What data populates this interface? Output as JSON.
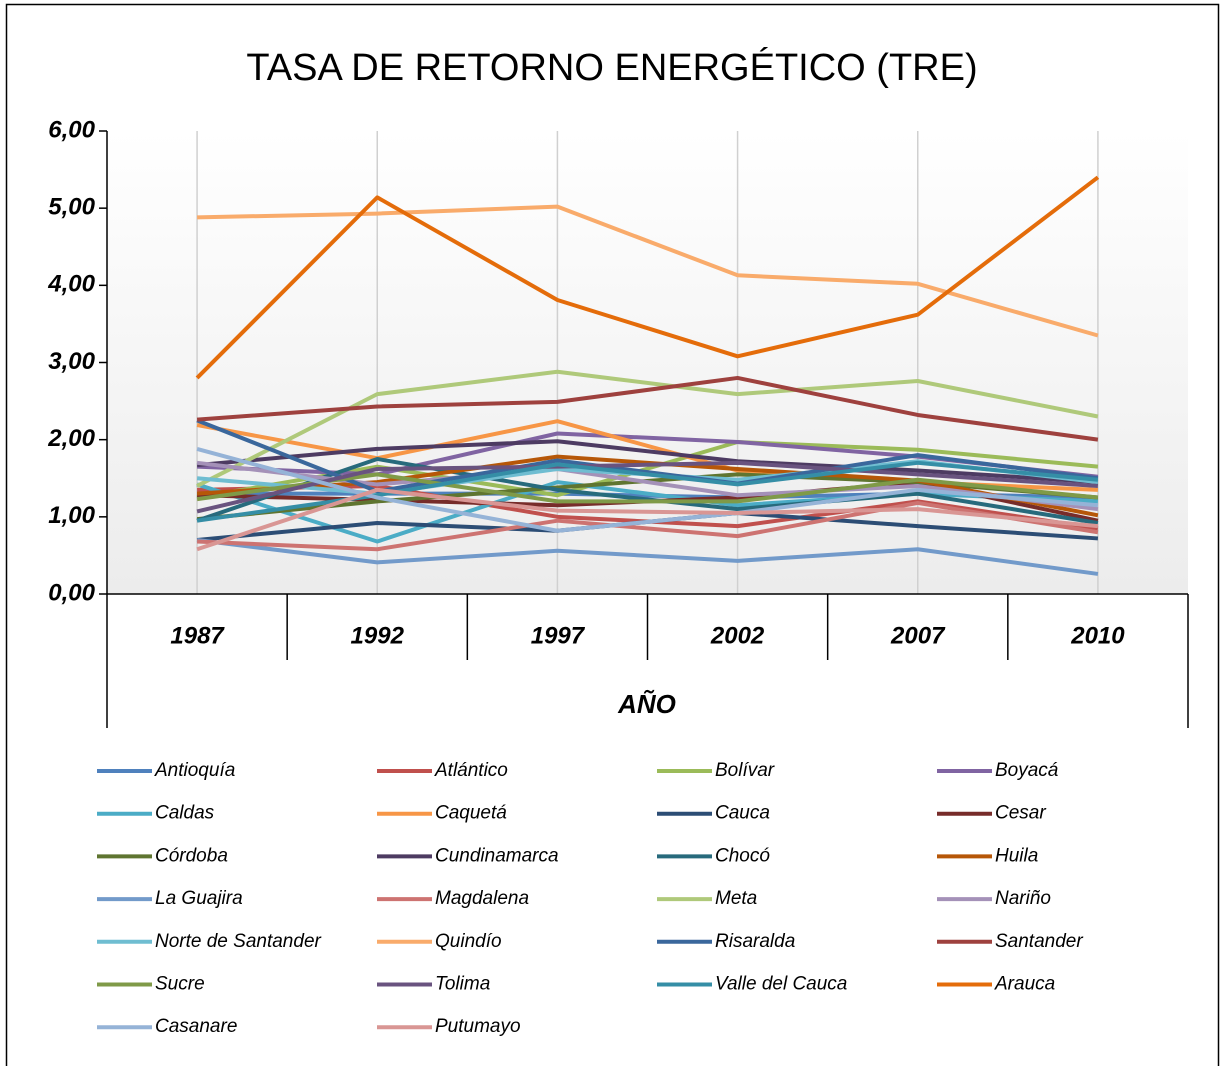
{
  "chart_data": {
    "type": "line",
    "title": "TASA DE RETORNO ENERGÉTICO (TRE)",
    "x_label": "AÑO",
    "categories": [
      "1987",
      "1992",
      "1997",
      "2002",
      "2007",
      "2010"
    ],
    "ylim": [
      0,
      6
    ],
    "yticks": [
      {
        "value": 0,
        "label": "0,00"
      },
      {
        "value": 1,
        "label": "1,00"
      },
      {
        "value": 2,
        "label": "2,00"
      },
      {
        "value": 3,
        "label": "3,00"
      },
      {
        "value": 4,
        "label": "4,00"
      },
      {
        "value": 5,
        "label": "5,00"
      },
      {
        "value": 6,
        "label": "6,00"
      }
    ],
    "grid": true,
    "series": [
      {
        "name": "Antioquía",
        "color": "#4F81BD",
        "values": [
          1.3,
          1.3,
          1.3,
          1.25,
          1.3,
          1.25
        ]
      },
      {
        "name": "Atlántico",
        "color": "#C0504D",
        "values": [
          1.35,
          1.4,
          1.0,
          0.88,
          1.2,
          0.85
        ]
      },
      {
        "name": "Bolívar",
        "color": "#9BBB59",
        "values": [
          1.25,
          1.65,
          1.28,
          1.97,
          1.87,
          1.65
        ]
      },
      {
        "name": "Boyacá",
        "color": "#8064A2",
        "values": [
          1.65,
          1.55,
          2.08,
          1.97,
          1.78,
          1.52
        ]
      },
      {
        "name": "Caldas",
        "color": "#4BACC6",
        "values": [
          1.42,
          0.68,
          1.45,
          1.15,
          1.3,
          1.2
        ]
      },
      {
        "name": "Caquetá",
        "color": "#F79646",
        "values": [
          2.19,
          1.76,
          2.24,
          1.6,
          1.45,
          1.35
        ]
      },
      {
        "name": "Cauca",
        "color": "#2C4D75",
        "values": [
          0.7,
          0.92,
          0.82,
          1.05,
          0.88,
          0.72
        ]
      },
      {
        "name": "Cesar",
        "color": "#772C2A",
        "values": [
          1.28,
          1.22,
          1.15,
          1.25,
          1.45,
          0.95
        ]
      },
      {
        "name": "Córdoba",
        "color": "#5F7530",
        "values": [
          0.97,
          1.2,
          1.38,
          1.55,
          1.45,
          1.25
        ]
      },
      {
        "name": "Cundinamarca",
        "color": "#4D3B62",
        "values": [
          1.67,
          1.88,
          1.98,
          1.72,
          1.6,
          1.45
        ]
      },
      {
        "name": "Chocó",
        "color": "#276A7C",
        "values": [
          0.95,
          1.75,
          1.35,
          1.1,
          1.3,
          0.92
        ]
      },
      {
        "name": "Huila",
        "color": "#B65708",
        "values": [
          1.3,
          1.45,
          1.78,
          1.62,
          1.47,
          1.02
        ]
      },
      {
        "name": "La Guajira",
        "color": "#729ACA",
        "values": [
          0.7,
          0.41,
          0.56,
          0.43,
          0.58,
          0.26
        ]
      },
      {
        "name": "Magdalena",
        "color": "#CD7371",
        "values": [
          0.68,
          0.58,
          0.95,
          0.75,
          1.18,
          0.8
        ]
      },
      {
        "name": "Meta",
        "color": "#AFC97A",
        "values": [
          1.4,
          2.59,
          2.88,
          2.59,
          2.76,
          2.3
        ]
      },
      {
        "name": "Nariño",
        "color": "#A491B8",
        "values": [
          1.7,
          1.42,
          1.62,
          1.28,
          1.4,
          1.1
        ]
      },
      {
        "name": "Norte de Santander",
        "color": "#6FBDD1",
        "values": [
          1.5,
          1.3,
          1.62,
          1.48,
          1.72,
          1.45
        ]
      },
      {
        "name": "Quindío",
        "color": "#F9AB6B",
        "values": [
          4.88,
          4.93,
          5.02,
          4.13,
          4.02,
          3.35
        ]
      },
      {
        "name": "Risaralda",
        "color": "#3A679C",
        "values": [
          2.25,
          1.33,
          1.73,
          1.43,
          1.8,
          1.5
        ]
      },
      {
        "name": "Santander",
        "color": "#9E413E",
        "values": [
          2.26,
          2.43,
          2.49,
          2.8,
          2.32,
          2.0
        ]
      },
      {
        "name": "Sucre",
        "color": "#7F9A48",
        "values": [
          1.23,
          1.55,
          1.2,
          1.2,
          1.48,
          1.25
        ]
      },
      {
        "name": "Tolima",
        "color": "#69537F",
        "values": [
          1.07,
          1.62,
          1.65,
          1.7,
          1.55,
          1.4
        ]
      },
      {
        "name": "Valle del Cauca",
        "color": "#358EA6",
        "values": [
          0.95,
          1.28,
          1.68,
          1.42,
          1.7,
          1.48
        ]
      },
      {
        "name": "Arauca",
        "color": "#E46C0A",
        "values": [
          2.8,
          5.14,
          3.81,
          3.08,
          3.62,
          5.4
        ]
      },
      {
        "name": "Casanare",
        "color": "#95B3D7",
        "values": [
          1.88,
          1.25,
          0.82,
          1.05,
          1.35,
          1.15
        ]
      },
      {
        "name": "Putumayo",
        "color": "#D99694",
        "values": [
          0.58,
          1.35,
          1.08,
          1.05,
          1.1,
          0.88
        ]
      }
    ]
  }
}
